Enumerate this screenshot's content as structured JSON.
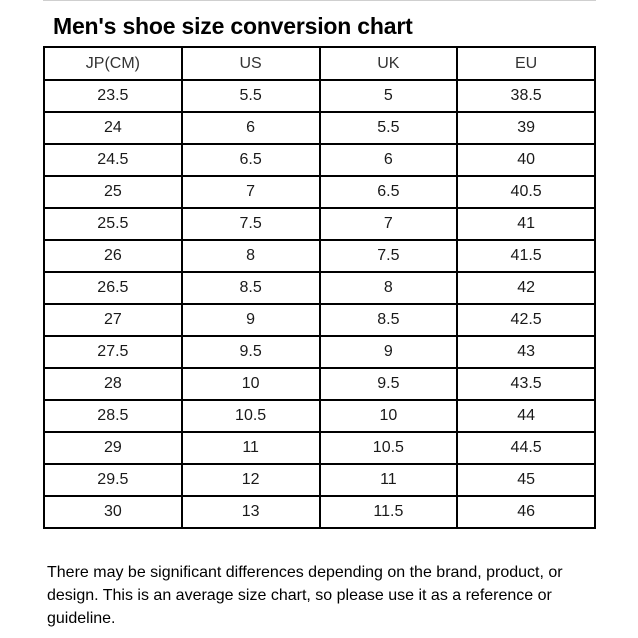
{
  "title": "Men's shoe size conversion chart",
  "columns": [
    "JP(CM)",
    "US",
    "UK",
    "EU"
  ],
  "rows": [
    [
      "23.5",
      "5.5",
      "5",
      "38.5"
    ],
    [
      "24",
      "6",
      "5.5",
      "39"
    ],
    [
      "24.5",
      "6.5",
      "6",
      "40"
    ],
    [
      "25",
      "7",
      "6.5",
      "40.5"
    ],
    [
      "25.5",
      "7.5",
      "7",
      "41"
    ],
    [
      "26",
      "8",
      "7.5",
      "41.5"
    ],
    [
      "26.5",
      "8.5",
      "8",
      "42"
    ],
    [
      "27",
      "9",
      "8.5",
      "42.5"
    ],
    [
      "27.5",
      "9.5",
      "9",
      "43"
    ],
    [
      "28",
      "10",
      "9.5",
      "43.5"
    ],
    [
      "28.5",
      "10.5",
      "10",
      "44"
    ],
    [
      "29",
      "11",
      "10.5",
      "44.5"
    ],
    [
      "29.5",
      "12",
      "11",
      "45"
    ],
    [
      "30",
      "13",
      "11.5",
      "46"
    ]
  ],
  "note": "There may be significant differences depending on the brand, product, or design. This is an average size chart, so please use it as a reference or guideline."
}
